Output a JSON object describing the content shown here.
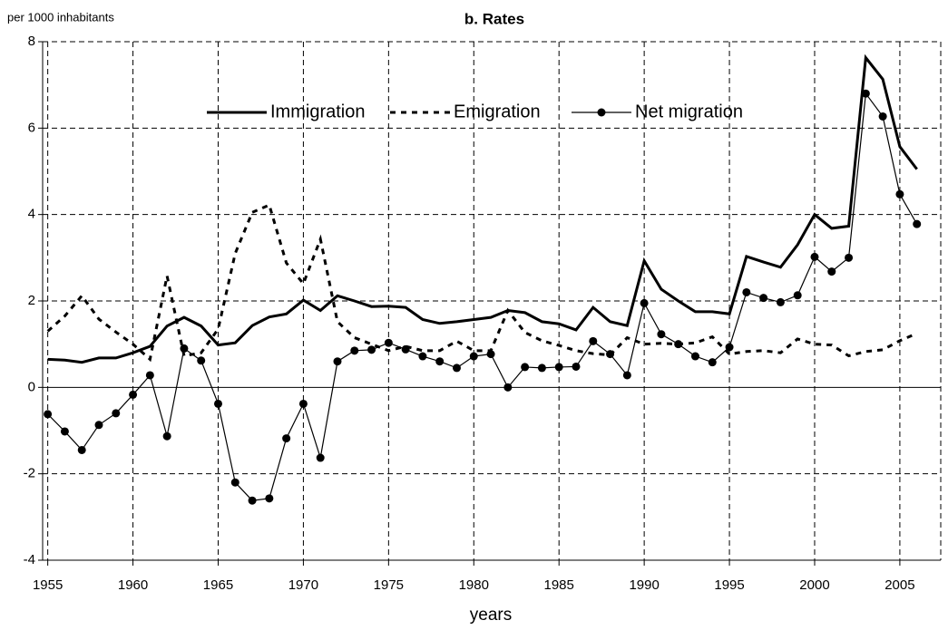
{
  "chart_data": {
    "type": "line",
    "title": "b. Rates",
    "ylabel": "per 1000 inhabitants",
    "xlabel": "years",
    "x": [
      1955,
      1956,
      1957,
      1958,
      1959,
      1960,
      1961,
      1962,
      1963,
      1964,
      1965,
      1966,
      1967,
      1968,
      1969,
      1970,
      1971,
      1972,
      1973,
      1974,
      1975,
      1976,
      1977,
      1978,
      1979,
      1980,
      1981,
      1982,
      1983,
      1984,
      1985,
      1986,
      1987,
      1988,
      1989,
      1990,
      1991,
      1992,
      1993,
      1994,
      1995,
      1996,
      1997,
      1998,
      1999,
      2000,
      2001,
      2002,
      2003,
      2004,
      2005,
      2006
    ],
    "series": [
      {
        "name": "Immigration",
        "color": "#000000",
        "style": "solid",
        "marker": false,
        "values": [
          0.65,
          0.63,
          0.58,
          0.68,
          0.68,
          0.8,
          0.95,
          1.42,
          1.62,
          1.42,
          0.98,
          1.03,
          1.43,
          1.63,
          1.7,
          2.02,
          1.78,
          2.12,
          2.0,
          1.87,
          1.88,
          1.85,
          1.57,
          1.48,
          1.52,
          1.57,
          1.62,
          1.78,
          1.73,
          1.52,
          1.47,
          1.33,
          1.85,
          1.52,
          1.43,
          2.93,
          2.27,
          2.0,
          1.75,
          1.75,
          1.7,
          3.03,
          2.9,
          2.78,
          3.3,
          4.0,
          3.68,
          3.73,
          7.63,
          7.13,
          5.57,
          5.05
        ]
      },
      {
        "name": "Emigration",
        "color": "#000000",
        "style": "dashed",
        "marker": false,
        "values": [
          1.3,
          1.65,
          2.12,
          1.58,
          1.28,
          1.0,
          0.65,
          2.58,
          0.73,
          0.8,
          1.35,
          3.1,
          4.05,
          4.22,
          2.88,
          2.4,
          3.43,
          1.52,
          1.15,
          1.0,
          0.85,
          0.95,
          0.85,
          0.85,
          1.07,
          0.85,
          0.85,
          1.78,
          1.27,
          1.08,
          0.97,
          0.85,
          0.78,
          0.75,
          1.15,
          1.0,
          1.02,
          1.0,
          1.03,
          1.17,
          0.77,
          0.83,
          0.85,
          0.8,
          1.12,
          1.0,
          0.98,
          0.73,
          0.83,
          0.87,
          1.08,
          1.25
        ]
      },
      {
        "name": "Net migration",
        "color": "#000000",
        "style": "thin",
        "marker": true,
        "values": [
          -0.62,
          -1.02,
          -1.45,
          -0.87,
          -0.6,
          -0.17,
          0.28,
          -1.13,
          0.9,
          0.62,
          -0.38,
          -2.2,
          -2.62,
          -2.57,
          -1.18,
          -0.38,
          -1.63,
          0.6,
          0.85,
          0.87,
          1.03,
          0.88,
          0.72,
          0.6,
          0.45,
          0.72,
          0.77,
          0.0,
          0.47,
          0.45,
          0.47,
          0.48,
          1.07,
          0.77,
          0.28,
          1.95,
          1.23,
          1.0,
          0.72,
          0.58,
          0.93,
          2.2,
          2.07,
          1.97,
          2.13,
          3.02,
          2.68,
          3.0,
          6.8,
          6.27,
          4.47,
          3.78
        ]
      }
    ],
    "xlim": [
      1954.7,
      2007.4
    ],
    "xticks": [
      1955,
      1960,
      1965,
      1970,
      1975,
      1980,
      1985,
      1990,
      1995,
      2000,
      2005
    ],
    "ylim": [
      -4,
      8
    ],
    "yticks": [
      -4,
      -2,
      0,
      2,
      4,
      6,
      8
    ],
    "grid": true,
    "legend": "top"
  }
}
